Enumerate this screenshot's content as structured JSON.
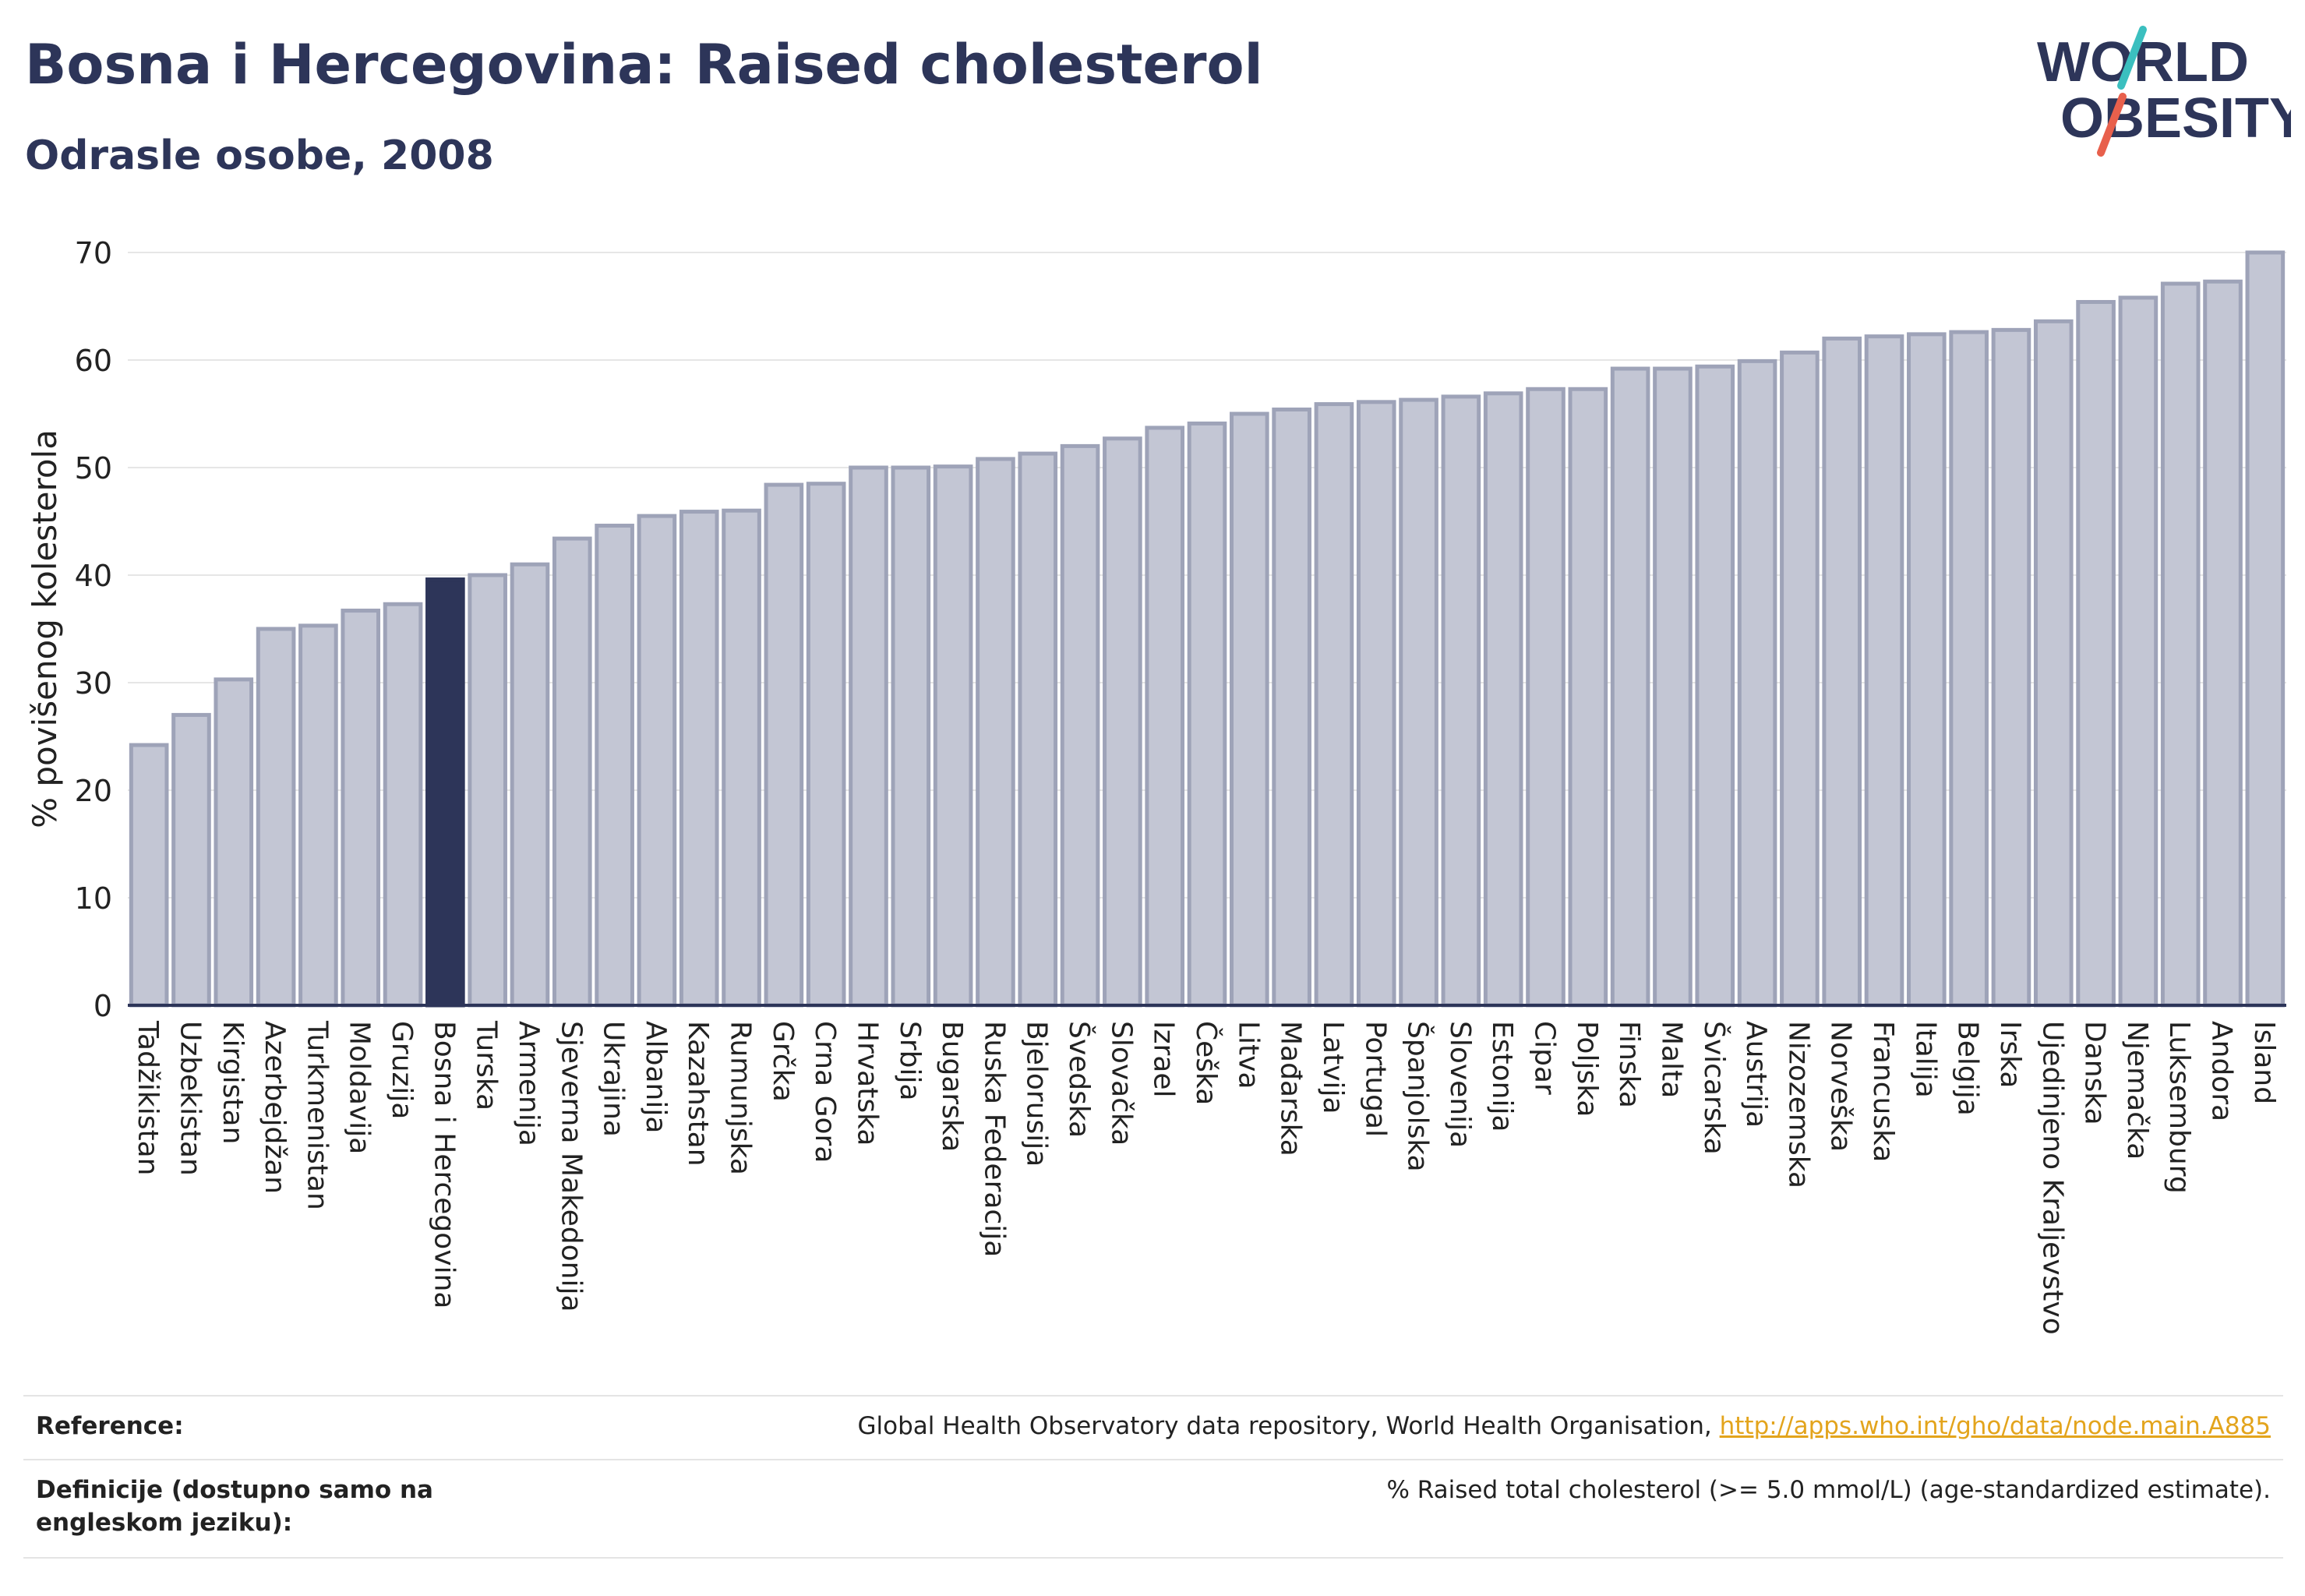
{
  "header": {
    "title": "Bosna i Hercegovina: Raised cholesterol",
    "subtitle": "Odrasle osobe, 2008"
  },
  "logo": {
    "line1": "WORLD",
    "line2": "OBESITY",
    "accent_teal": "#3bbfbf",
    "accent_red": "#e8604c",
    "text_color": "#2d3559"
  },
  "colors": {
    "bar": "#c3c6d4",
    "bar_edge": "#9ea3b8",
    "highlight": "#2d3559",
    "grid": "#e6e6e6",
    "axis": "#2d3559"
  },
  "chart_data": {
    "type": "bar",
    "title": "Bosna i Hercegovina: Raised cholesterol",
    "subtitle": "Odrasle osobe, 2008",
    "ylabel": "% povišenog kolesterola",
    "xlabel": "",
    "ylim": [
      0,
      70
    ],
    "yticks": [
      0,
      10,
      20,
      30,
      40,
      50,
      60,
      70
    ],
    "grid": true,
    "highlight": "Bosna i Hercegovina",
    "categories": [
      "Tadžikistan",
      "Uzbekistan",
      "Kirgistan",
      "Azerbejdžan",
      "Turkmenistan",
      "Moldavija",
      "Gruzija",
      "Bosna i Hercegovina",
      "Turska",
      "Armenija",
      "Sjeverna Makedonija",
      "Ukrajina",
      "Albanija",
      "Kazahstan",
      "Rumunjska",
      "Grčka",
      "Crna Gora",
      "Hrvatska",
      "Srbija",
      "Bugarska",
      "Ruska Federacija",
      "Bjelorusija",
      "Švedska",
      "Slovačka",
      "Izrael",
      "Češka",
      "Litva",
      "Mađarska",
      "Latvija",
      "Portugal",
      "Španjolska",
      "Slovenija",
      "Estonija",
      "Cipar",
      "Poljska",
      "Finska",
      "Malta",
      "Švicarska",
      "Austrija",
      "Nizozemska",
      "Norveška",
      "Francuska",
      "Italija",
      "Belgija",
      "Irska",
      "Ujedinjeno Kraljevstvo",
      "Danska",
      "Njemačka",
      "Luksemburg",
      "Andora",
      "Island"
    ],
    "values": [
      24.2,
      27.0,
      30.3,
      35.0,
      35.3,
      36.7,
      37.3,
      39.6,
      40.0,
      41.0,
      43.4,
      44.6,
      45.5,
      45.9,
      46.0,
      48.4,
      48.5,
      50.0,
      50.0,
      50.1,
      50.8,
      51.3,
      52.0,
      52.7,
      53.7,
      54.1,
      55.0,
      55.4,
      55.9,
      56.1,
      56.3,
      56.6,
      56.9,
      57.3,
      57.3,
      59.2,
      59.2,
      59.4,
      59.9,
      60.7,
      62.0,
      62.2,
      62.4,
      62.6,
      62.8,
      63.6,
      65.4,
      65.8,
      67.1,
      67.3,
      70.0
    ]
  },
  "footer": {
    "reference_label": "Reference:",
    "reference_text": "Global Health Observatory data repository, World Health Organisation, ",
    "reference_link": "http://apps.who.int/gho/data/node.main.A885",
    "definition_label": "Definicije (dostupno samo na engleskom jeziku):",
    "definition_text": "% Raised total cholesterol (>= 5.0 mmol/L) (age-standardized estimate)."
  }
}
